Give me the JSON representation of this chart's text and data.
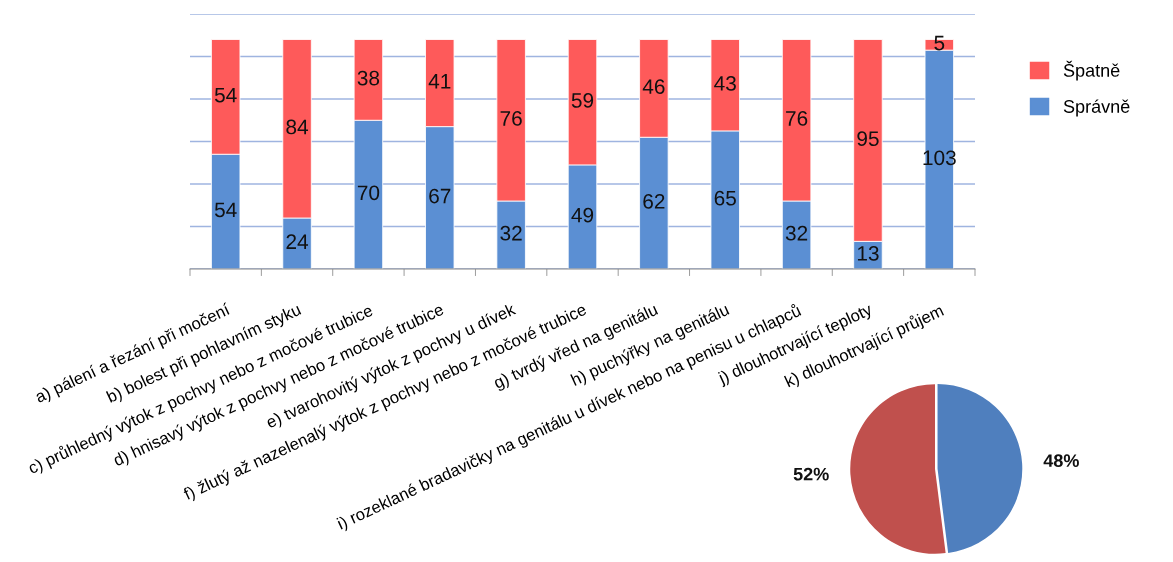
{
  "chart_data": [
    {
      "type": "bar",
      "stacked": true,
      "categories": [
        "a) pálení a řezání při močení",
        "b) bolest při pohlavním styku",
        "c) průhledný výtok z pochvy nebo z močové trubice",
        "d) hnisavý výtok z pochvy nebo z močové trubice",
        "e) tvarohovitý výtok z pochvy u dívek",
        "f) žlutý až nazelenalý výtok z pochvy nebo z močové trubice",
        "g) tvrdý vřed na genitálu",
        "h) puchýřky na genitálu",
        "i) rozeklané bradavičky na genitálu u dívek nebo na penisu u chlapců",
        "j) dlouhotrvající teploty",
        "k) dlouhotrvající průjem"
      ],
      "series": [
        {
          "name": "Správně",
          "color": "#5b8fd3",
          "values": [
            54,
            24,
            70,
            67,
            32,
            49,
            62,
            65,
            32,
            13,
            103
          ]
        },
        {
          "name": "Špatně",
          "color": "#fe5a5a",
          "values": [
            54,
            84,
            38,
            41,
            76,
            59,
            46,
            43,
            76,
            95,
            5
          ]
        }
      ],
      "ylim": [
        0,
        120
      ],
      "yticks": [
        {
          "value": 0,
          "label": null
        },
        {
          "value": 20,
          "label": null
        },
        {
          "value": 40,
          "label": null
        },
        {
          "value": 60,
          "label": null
        },
        {
          "value": 80,
          "label": null
        },
        {
          "value": 100,
          "label": null
        },
        {
          "value": 120,
          "label": null
        }
      ],
      "grid": "y",
      "tick_labels": "x",
      "legend": "right",
      "data_labels": true
    },
    {
      "type": "pie",
      "categories": [
        null,
        null
      ],
      "values": [
        48,
        52
      ],
      "colors": [
        "#4f7fbe",
        "#c0504d"
      ],
      "value_labels": [
        "48%",
        "52%"
      ]
    }
  ]
}
